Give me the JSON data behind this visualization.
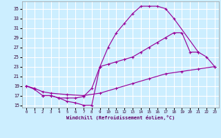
{
  "xlabel": "Windchill (Refroidissement éolien,°C)",
  "bg_color": "#cceeff",
  "line_color": "#990099",
  "grid_color": "#ffffff",
  "xlim": [
    -0.5,
    23.5
  ],
  "ylim": [
    14.5,
    36.5
  ],
  "xticks": [
    0,
    1,
    2,
    3,
    4,
    5,
    6,
    7,
    8,
    9,
    10,
    11,
    12,
    13,
    14,
    15,
    16,
    17,
    18,
    19,
    20,
    21,
    22,
    23
  ],
  "yticks": [
    15,
    17,
    19,
    21,
    23,
    25,
    27,
    29,
    31,
    33,
    35
  ],
  "line1_x": [
    0,
    1,
    2,
    3,
    4,
    5,
    6,
    7,
    8,
    9,
    10,
    11,
    12,
    13,
    14,
    15,
    16,
    17,
    18,
    21
  ],
  "line1_y": [
    19,
    18.3,
    17,
    17,
    16.5,
    15.8,
    15.5,
    15,
    15,
    23,
    27,
    30,
    32,
    34,
    35.5,
    35.5,
    35.5,
    35,
    33,
    26
  ],
  "line2_x": [
    0,
    1,
    2,
    3,
    5,
    7,
    9,
    11,
    13,
    15,
    17,
    19,
    21,
    23
  ],
  "line2_y": [
    19,
    18.5,
    17.8,
    17.5,
    17.2,
    17.0,
    17.5,
    18.5,
    19.5,
    20.5,
    21.5,
    22,
    22.5,
    23
  ],
  "line3_x": [
    2,
    3,
    4,
    5,
    6,
    7,
    8,
    9,
    10,
    11,
    12,
    13,
    14,
    15,
    16,
    17,
    18,
    19,
    20,
    21,
    22,
    23
  ],
  "line3_y": [
    17,
    17,
    16.5,
    16.5,
    16.5,
    16.8,
    18.5,
    23,
    23.5,
    24,
    24.5,
    25,
    26,
    27,
    28,
    29,
    30,
    30,
    26,
    26,
    25,
    23
  ]
}
